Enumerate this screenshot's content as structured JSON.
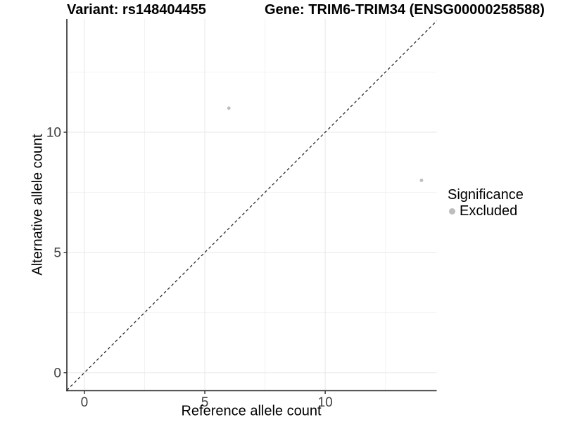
{
  "header": {
    "variant_title": "Variant: rs148404455",
    "gene_title": "Gene: TRIM6-TRIM34 (ENSG00000258588)"
  },
  "legend": {
    "title": "Significance",
    "items": [
      {
        "label": "Excluded",
        "color": "#bdbdbd"
      }
    ]
  },
  "chart_data": {
    "type": "scatter",
    "title_left": "Variant: rs148404455",
    "title_right": "Gene: TRIM6-TRIM34 (ENSG00000258588)",
    "xlabel": "Reference allele count",
    "ylabel": "Alternative allele count",
    "xlim": [
      -0.73,
      14.63
    ],
    "ylim": [
      -0.75,
      14.71
    ],
    "x_ticks": [
      0,
      5,
      10
    ],
    "y_ticks": [
      0,
      5,
      10
    ],
    "minor_tick_step": 2.5,
    "grid": "major+minor",
    "legend_position": "right",
    "reference_line": {
      "type": "identity y=x",
      "style": "dashed",
      "color": "#1a1a1a"
    },
    "series": [
      {
        "name": "Excluded",
        "color": "#bdbdbd",
        "marker": "circle",
        "points": [
          {
            "x": 6,
            "y": 11
          },
          {
            "x": 14,
            "y": 8
          }
        ]
      }
    ]
  },
  "style": {
    "background": "#ffffff",
    "grid_major_color": "#e7e7e7",
    "grid_minor_color": "#f2f2f2",
    "axis_line_color": "#2b2b2b",
    "tick_label_color": "#404040",
    "text_color": "#000000"
  }
}
